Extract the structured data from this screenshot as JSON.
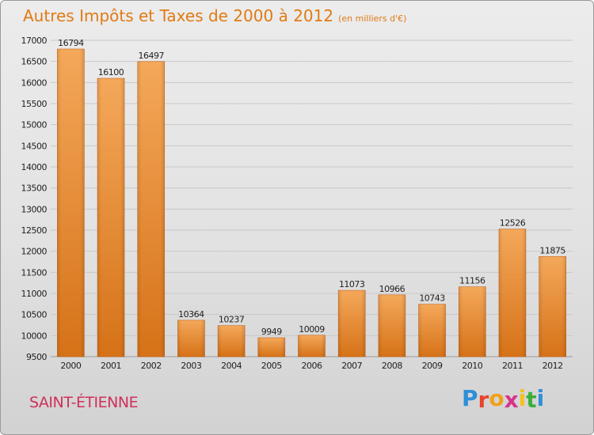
{
  "header": {
    "title": "Autres Impôts et Taxes de 2000 à 2012",
    "unit": "(en milliers d'€)"
  },
  "footer": {
    "town": "SAINT-ÉTIENNE",
    "logo_letters": [
      {
        "ch": "P",
        "color": "#2e8fd8"
      },
      {
        "ch": "r",
        "color": "#e8442c"
      },
      {
        "ch": "o",
        "color": "#f0a11a"
      },
      {
        "ch": "x",
        "color": "#d8338a"
      },
      {
        "ch": "i",
        "color": "#f4c21c"
      },
      {
        "ch": "t",
        "color": "#3cae3a"
      },
      {
        "ch": "i",
        "color": "#2e8fd8"
      }
    ]
  },
  "colors": {
    "bar_light": "#f4a85a",
    "bar_dark": "#d67218",
    "title": "#e07a14",
    "town": "#d0305a"
  },
  "chart_data": {
    "type": "bar",
    "title": "Autres Impôts et Taxes de 2000 à 2012",
    "subtitle": "(en milliers d'€)",
    "categories": [
      "2000",
      "2001",
      "2002",
      "2003",
      "2004",
      "2005",
      "2006",
      "2007",
      "2008",
      "2009",
      "2010",
      "2011",
      "2012"
    ],
    "values": [
      16794,
      16100,
      16497,
      10364,
      10237,
      9949,
      10009,
      11073,
      10966,
      10743,
      11156,
      12526,
      11875
    ],
    "ylim": [
      9500,
      17000
    ],
    "yticks": [
      9500,
      10000,
      10500,
      11000,
      11500,
      12000,
      12500,
      13000,
      13500,
      14000,
      14500,
      15000,
      15500,
      16000,
      16500,
      17000
    ],
    "grid": true
  }
}
